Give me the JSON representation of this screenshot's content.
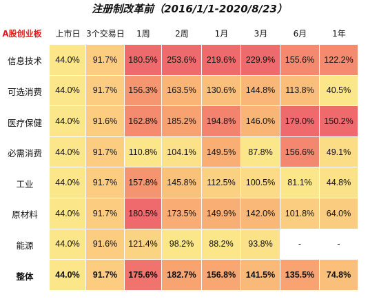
{
  "chart_data": {
    "type": "heatmap",
    "title": "注册制改革前（2016/1/1-2020/8/23）",
    "corner_label": "A股创业板",
    "columns": [
      "上市日",
      "3个交易日",
      "1周",
      "2周",
      "1月",
      "3月",
      "6月",
      "1年"
    ],
    "rows": [
      "信息技术",
      "可选消费",
      "医疗保健",
      "必需消费",
      "工业",
      "原材料",
      "能源",
      "整体"
    ],
    "values": [
      [
        "44.0%",
        "91.7%",
        "180.5%",
        "253.6%",
        "219.6%",
        "229.9%",
        "155.6%",
        "122.2%"
      ],
      [
        "44.0%",
        "91.7%",
        "156.3%",
        "163.5%",
        "130.6%",
        "144.8%",
        "113.8%",
        "40.5%"
      ],
      [
        "44.0%",
        "91.6%",
        "162.8%",
        "185.2%",
        "194.8%",
        "146.0%",
        "179.0%",
        "150.2%"
      ],
      [
        "44.0%",
        "91.7%",
        "110.8%",
        "104.1%",
        "149.5%",
        "87.8%",
        "156.6%",
        "49.1%"
      ],
      [
        "44.0%",
        "91.7%",
        "157.8%",
        "145.8%",
        "112.5%",
        "100.5%",
        "81.1%",
        "44.8%"
      ],
      [
        "44.0%",
        "91.7%",
        "180.5%",
        "173.5%",
        "149.9%",
        "142.0%",
        "101.8%",
        "64.0%"
      ],
      [
        "44.0%",
        "91.6%",
        "121.4%",
        "98.2%",
        "88.2%",
        "93.8%",
        "-",
        "-"
      ],
      [
        "44.0%",
        "91.7%",
        "175.6%",
        "182.7%",
        "156.8%",
        "141.5%",
        "135.5%",
        "74.8%"
      ]
    ],
    "bold_rows": [
      "整体"
    ],
    "color_scale": {
      "low": "#fbe68a",
      "mid": "#f9aa72",
      "high": "#ef6a6c",
      "missing": "#ffffff"
    }
  }
}
